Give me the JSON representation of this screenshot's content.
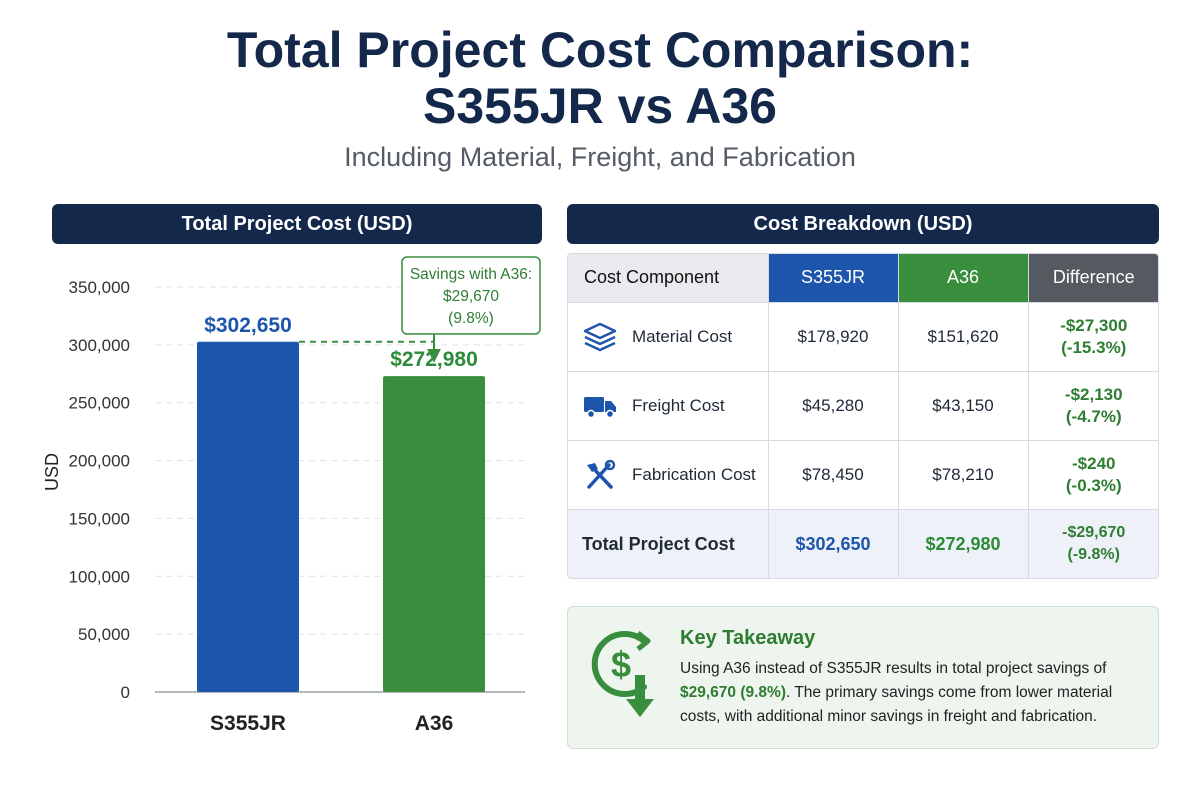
{
  "title_line1": "Total Project Cost Comparison:",
  "title_line2": "S355JR vs A36",
  "subtitle": "Including Material, Freight, and Fabrication",
  "chart_panel_title": "Total Project Cost (USD)",
  "table_panel_title": "Cost Breakdown (USD)",
  "chart_data": {
    "type": "bar",
    "categories": [
      "S355JR",
      "A36"
    ],
    "values": [
      302650,
      272980
    ],
    "value_labels": [
      "$302,650",
      "$272,980"
    ],
    "ylabel": "USD",
    "ylim": [
      0,
      350000
    ],
    "yticks": [
      0,
      50000,
      100000,
      150000,
      200000,
      250000,
      300000,
      350000
    ],
    "ytick_labels": [
      "0",
      "50,000",
      "100,000",
      "150,000",
      "200,000",
      "250,000",
      "300,000",
      "350,000"
    ],
    "grid": true,
    "bar_colors": [
      "#1d55ad",
      "#388e3c"
    ],
    "annotation": {
      "line1": "Savings with A36:",
      "line2": "$29,670",
      "line3": "(9.8%)"
    }
  },
  "table": {
    "headers": [
      "Cost Component",
      "S355JR",
      "A36",
      "Difference"
    ],
    "rows": [
      {
        "icon": "layers-icon",
        "component": "Material Cost",
        "s355jr": "$178,920",
        "a36": "$151,620",
        "diff": "-$27,300",
        "diff_pct": "(-15.3%)"
      },
      {
        "icon": "truck-icon",
        "component": "Freight Cost",
        "s355jr": "$45,280",
        "a36": "$43,150",
        "diff": "-$2,130",
        "diff_pct": "(-4.7%)"
      },
      {
        "icon": "tools-icon",
        "component": "Fabrication Cost",
        "s355jr": "$78,450",
        "a36": "$78,210",
        "diff": "-$240",
        "diff_pct": "(-0.3%)"
      }
    ],
    "total": {
      "component": "Total Project Cost",
      "s355jr": "$302,650",
      "a36": "$272,980",
      "diff": "-$29,670",
      "diff_pct": "(-9.8%)"
    }
  },
  "takeaway": {
    "icon": "dollar-down-icon",
    "title": "Key Takeaway",
    "text_before": "Using A36 instead of S355JR results in total project savings of ",
    "highlight": "$29,670 (9.8%)",
    "text_after": ". The primary savings come from lower material costs, with additional minor savings in freight and fabrication."
  },
  "colors": {
    "navy": "#13284b",
    "blue": "#1d55ad",
    "green": "#388e3c",
    "text_green": "#2e7d32",
    "gray_header": "#555a60"
  }
}
